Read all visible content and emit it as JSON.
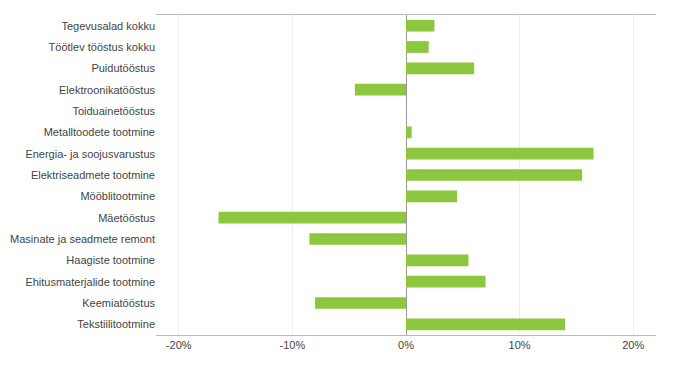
{
  "chart_data": {
    "type": "bar",
    "orientation": "horizontal",
    "categories": [
      "Tegevusalad kokku",
      "Töötlev tööstus kokku",
      "Puidutööstus",
      "Elektroonikatööstus",
      "Toiduainetööstus",
      "Metalltoodete tootmine",
      "Energia- ja soojusvarustus",
      "Elektriseadmete tootmine",
      "Mööblitootmine",
      "Mäetööstus",
      "Masinate ja seadmete remont",
      "Haagiste tootmine",
      "Ehitusmaterjalide tootmine",
      "Keemiatööstus",
      "Tekstiilitootmine"
    ],
    "values": [
      2.5,
      2.0,
      6.0,
      -4.5,
      0.0,
      0.5,
      16.5,
      15.5,
      4.5,
      -16.5,
      -8.5,
      5.5,
      7.0,
      -8.0,
      14.0
    ],
    "color": "#8dc63f",
    "xlim": [
      -22,
      22
    ],
    "xticks": [
      {
        "value": -20,
        "label": "-20%"
      },
      {
        "value": -10,
        "label": "-10%"
      },
      {
        "value": 0,
        "label": "0%"
      },
      {
        "value": 10,
        "label": "10%"
      },
      {
        "value": 20,
        "label": "20%"
      }
    ],
    "grid": true
  }
}
